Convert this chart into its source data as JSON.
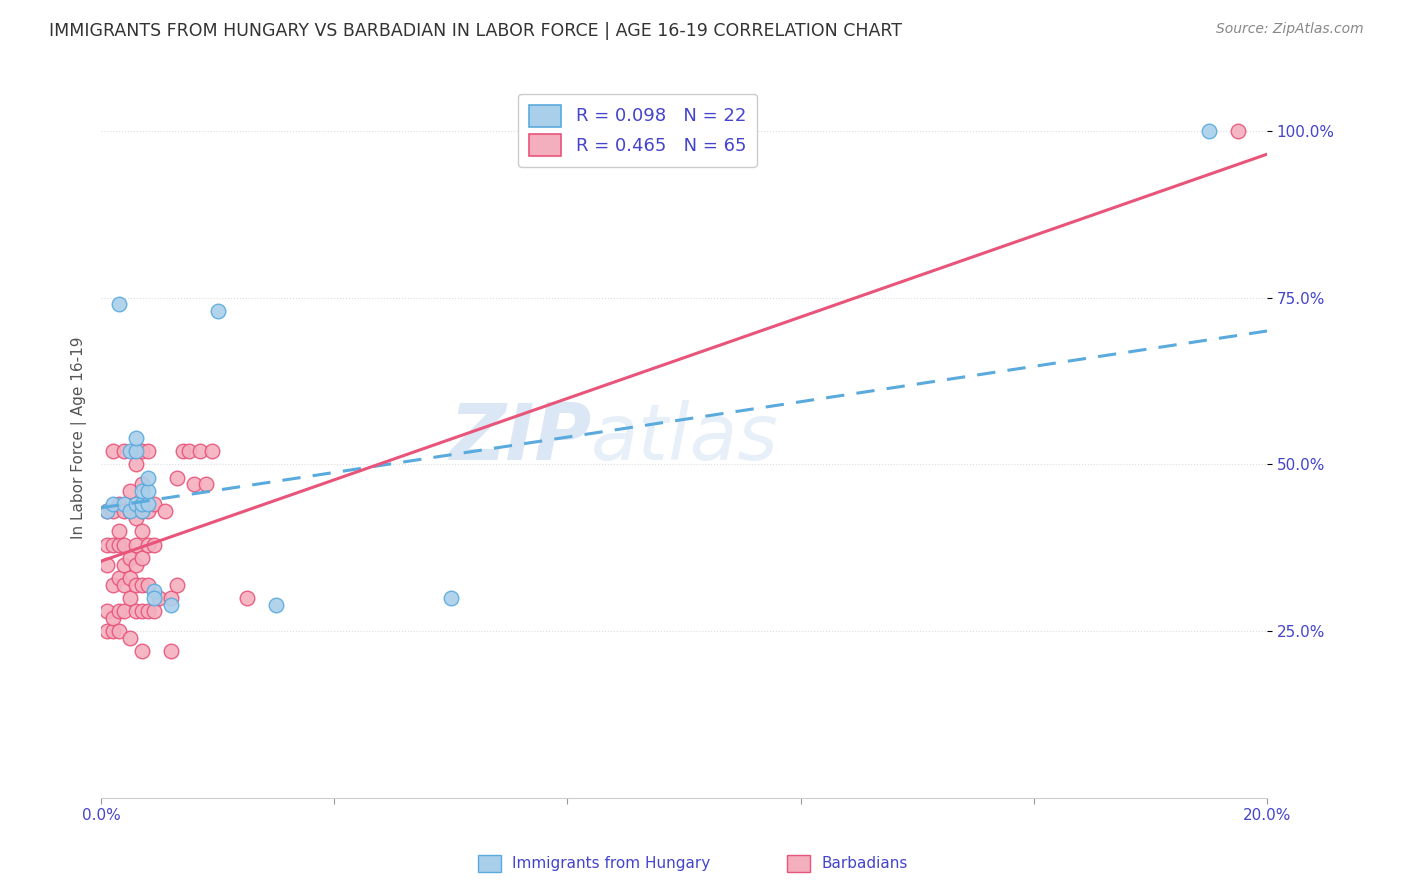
{
  "title": "IMMIGRANTS FROM HUNGARY VS BARBADIAN IN LABOR FORCE | AGE 16-19 CORRELATION CHART",
  "source": "Source: ZipAtlas.com",
  "ylabel": "In Labor Force | Age 16-19",
  "xmin": 0.0,
  "xmax": 0.2,
  "ymin": 0.0,
  "ymax": 1.08,
  "hungary_R": 0.098,
  "hungary_N": 22,
  "barbadian_R": 0.465,
  "barbadian_N": 65,
  "hungary_color": "#aacfea",
  "barbadian_color": "#f4afbe",
  "hungary_line_color": "#5aaadd",
  "barbadian_line_color": "#e8547a",
  "bg_color": "#ffffff",
  "grid_color": "#dddddd",
  "title_color": "#333333",
  "axis_label_color": "#4444cc",
  "watermark_zip": "ZIP",
  "watermark_atlas": "atlas",
  "hungary_line_x0": 0.0,
  "hungary_line_y0": 0.435,
  "hungary_line_x1": 0.2,
  "hungary_line_y1": 0.7,
  "barbadian_line_x0": 0.0,
  "barbadian_line_y0": 0.355,
  "barbadian_line_x1": 0.2,
  "barbadian_line_y1": 0.965,
  "hungary_scatter_x": [
    0.001,
    0.002,
    0.003,
    0.004,
    0.005,
    0.005,
    0.006,
    0.006,
    0.006,
    0.007,
    0.007,
    0.007,
    0.008,
    0.008,
    0.008,
    0.009,
    0.009,
    0.012,
    0.02,
    0.03,
    0.06,
    0.19
  ],
  "hungary_scatter_y": [
    0.43,
    0.44,
    0.74,
    0.44,
    0.43,
    0.52,
    0.44,
    0.52,
    0.54,
    0.43,
    0.44,
    0.46,
    0.44,
    0.46,
    0.48,
    0.31,
    0.3,
    0.29,
    0.73,
    0.29,
    0.3,
    1.0
  ],
  "barbadian_scatter_x": [
    0.001,
    0.001,
    0.001,
    0.001,
    0.001,
    0.002,
    0.002,
    0.002,
    0.002,
    0.002,
    0.002,
    0.003,
    0.003,
    0.003,
    0.003,
    0.003,
    0.003,
    0.004,
    0.004,
    0.004,
    0.004,
    0.004,
    0.004,
    0.005,
    0.005,
    0.005,
    0.005,
    0.005,
    0.005,
    0.006,
    0.006,
    0.006,
    0.006,
    0.006,
    0.006,
    0.007,
    0.007,
    0.007,
    0.007,
    0.007,
    0.007,
    0.007,
    0.007,
    0.008,
    0.008,
    0.008,
    0.008,
    0.008,
    0.009,
    0.009,
    0.009,
    0.01,
    0.011,
    0.012,
    0.012,
    0.013,
    0.013,
    0.014,
    0.015,
    0.016,
    0.017,
    0.018,
    0.019,
    0.025,
    0.195
  ],
  "barbadian_scatter_y": [
    0.25,
    0.28,
    0.35,
    0.38,
    0.43,
    0.25,
    0.27,
    0.32,
    0.38,
    0.43,
    0.52,
    0.25,
    0.28,
    0.33,
    0.38,
    0.4,
    0.44,
    0.28,
    0.32,
    0.35,
    0.38,
    0.43,
    0.52,
    0.24,
    0.3,
    0.33,
    0.36,
    0.43,
    0.46,
    0.28,
    0.32,
    0.35,
    0.38,
    0.42,
    0.5,
    0.22,
    0.28,
    0.32,
    0.36,
    0.4,
    0.43,
    0.47,
    0.52,
    0.28,
    0.32,
    0.38,
    0.43,
    0.52,
    0.28,
    0.38,
    0.44,
    0.3,
    0.43,
    0.22,
    0.3,
    0.32,
    0.48,
    0.52,
    0.52,
    0.47,
    0.52,
    0.47,
    0.52,
    0.3,
    1.0
  ]
}
